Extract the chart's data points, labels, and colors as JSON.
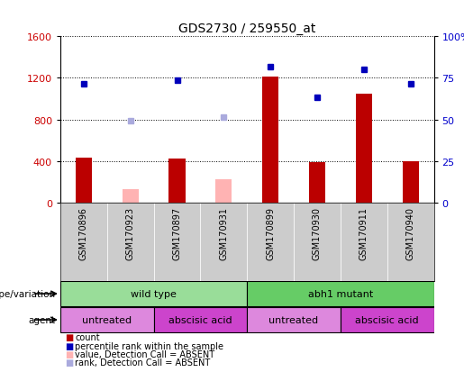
{
  "title": "GDS2730 / 259550_at",
  "samples": [
    "GSM170896",
    "GSM170923",
    "GSM170897",
    "GSM170931",
    "GSM170899",
    "GSM170930",
    "GSM170911",
    "GSM170940"
  ],
  "count_values": [
    430,
    null,
    420,
    null,
    1210,
    390,
    1050,
    400
  ],
  "count_absent_values": [
    null,
    130,
    null,
    220,
    null,
    null,
    null,
    null
  ],
  "rank_values": [
    1140,
    null,
    1175,
    null,
    1310,
    1010,
    1285,
    1140
  ],
  "rank_absent_values": [
    null,
    790,
    null,
    820,
    null,
    null,
    null,
    null
  ],
  "ylim_left": [
    0,
    1600
  ],
  "ylim_right": [
    0,
    100
  ],
  "yticks_left": [
    0,
    400,
    800,
    1200,
    1600
  ],
  "yticks_right": [
    0,
    25,
    50,
    75,
    100
  ],
  "bar_color": "#bb0000",
  "bar_absent_color": "#ffb3b3",
  "dot_color": "#0000bb",
  "dot_absent_color": "#aaaadd",
  "plot_bg_color": "#ffffff",
  "sample_bg_color": "#cccccc",
  "genotype_row": [
    {
      "label": "wild type",
      "start": 0,
      "end": 4,
      "color": "#99dd99"
    },
    {
      "label": "abh1 mutant",
      "start": 4,
      "end": 8,
      "color": "#66cc66"
    }
  ],
  "agent_row": [
    {
      "label": "untreated",
      "start": 0,
      "end": 2,
      "color": "#dd88dd"
    },
    {
      "label": "abscisic acid",
      "start": 2,
      "end": 4,
      "color": "#cc44cc"
    },
    {
      "label": "untreated",
      "start": 4,
      "end": 6,
      "color": "#dd88dd"
    },
    {
      "label": "abscisic acid",
      "start": 6,
      "end": 8,
      "color": "#cc44cc"
    }
  ],
  "legend_items": [
    {
      "color": "#bb0000",
      "label": "count"
    },
    {
      "color": "#0000bb",
      "label": "percentile rank within the sample"
    },
    {
      "color": "#ffb3b3",
      "label": "value, Detection Call = ABSENT"
    },
    {
      "color": "#aaaadd",
      "label": "rank, Detection Call = ABSENT"
    }
  ],
  "left_label_color": "#cc0000",
  "right_label_color": "#0000cc"
}
